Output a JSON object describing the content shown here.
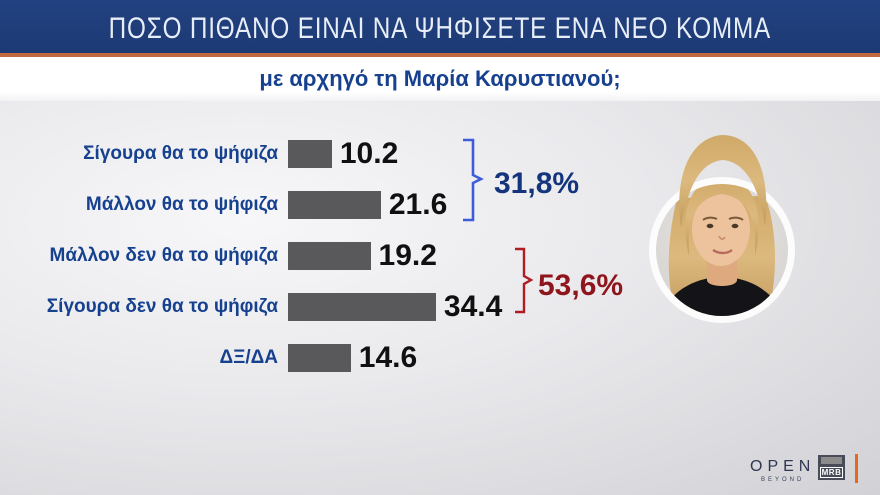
{
  "banner": {
    "title": "ΠΟΣΟ ΠΙΘΑΝΟ ΕΙΝΑΙ ΝΑ ΨΗΦΙΣΕΤΕ ΕΝΑ ΝΕΟ ΚΟΜΜΑ"
  },
  "subtitle": "με αρχηγό τη Μαρία Καρυστιανού;",
  "chart_data": {
    "type": "bar",
    "orientation": "horizontal",
    "title": "ΠΟΣΟ ΠΙΘΑΝΟ ΕΙΝΑΙ ΝΑ ΨΗΦΙΣΕΤΕ ΕΝΑ ΝΕΟ ΚΟΜΜΑ",
    "subtitle": "με αρχηγό τη Μαρία Καρυστιανού;",
    "categories": [
      "Σίγουρα θα το ψήφιζα",
      "Μάλλον θα το ψήφιζα",
      "Μάλλον δεν θα το ψήφιζα",
      "Σίγουρα δεν θα το ψήφιζα",
      "ΔΞ/ΔΑ"
    ],
    "values": [
      10.2,
      21.6,
      19.2,
      34.4,
      14.6
    ],
    "xlim": [
      0,
      40
    ],
    "grid": false,
    "bar_color": "#59595b",
    "label_color": "#16418f",
    "value_color": "#101010",
    "annotations": [
      {
        "label": "31,8%",
        "sum_of": [
          "Σίγουρα θα το ψήφιζα",
          "Μάλλον θα το ψήφιζα"
        ],
        "color": "#14357d",
        "bracket_color": "#3e5cd8"
      },
      {
        "label": "53,6%",
        "sum_of": [
          "Μάλλον δεν θα το ψήφιζα",
          "Σίγουρα δεν θα το ψήφιζα"
        ],
        "color": "#8e151b",
        "bracket_color": "#b01c24"
      }
    ]
  },
  "photo": {
    "description": "circular portrait of Maria Karystianou"
  },
  "footer": {
    "open_label": "OPEN",
    "open_sub": "BEYOND",
    "mrb_label": "MRB"
  },
  "colors": {
    "banner_bg": "#1e3d7a",
    "accent_rule": "#c26b41",
    "background": "#e6e6e9",
    "footer_orange": "#e8671b"
  }
}
